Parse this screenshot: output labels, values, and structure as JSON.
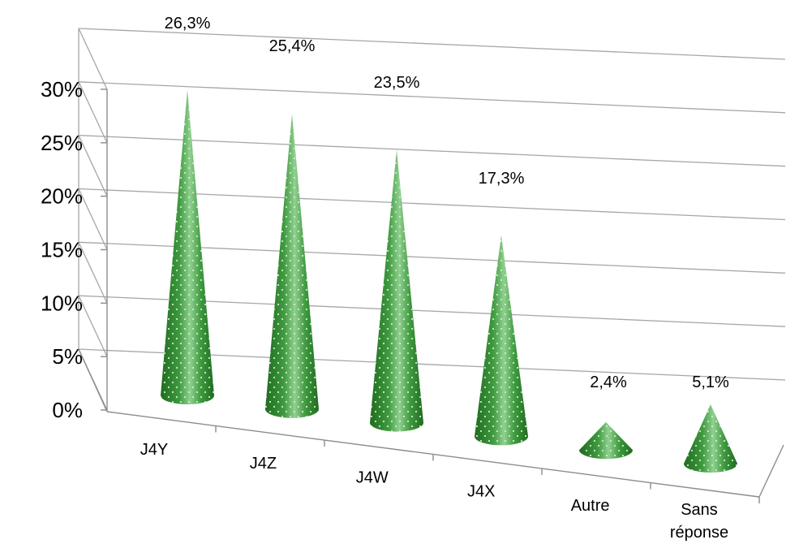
{
  "chart_data": {
    "type": "bar",
    "bar_shape": "cone",
    "three_d": true,
    "categories": [
      "J4Y",
      "J4Z",
      "J4W",
      "J4X",
      "Autre",
      "Sans réponse"
    ],
    "category_lines": [
      [
        "J4Y"
      ],
      [
        "J4Z"
      ],
      [
        "J4W"
      ],
      [
        "J4X"
      ],
      [
        "Autre"
      ],
      [
        "Sans",
        "réponse"
      ]
    ],
    "values": [
      26.3,
      25.4,
      23.5,
      17.3,
      2.4,
      5.1
    ],
    "data_labels": [
      "26,3%",
      "25,4%",
      "23,5%",
      "17,3%",
      "2,4%",
      "5,1%"
    ],
    "y_ticks": [
      "0%",
      "5%",
      "10%",
      "15%",
      "20%",
      "25%",
      "30%"
    ],
    "ylim": [
      0,
      30
    ],
    "y_unit": "%",
    "grid": true,
    "legend": "none",
    "colors": {
      "bar_dark": "#1f6b1f",
      "bar_mid": "#3f9a3f",
      "bar_light": "#8fd08f",
      "dots": "#cfe9cf",
      "grid": "#a6a6a6",
      "axis": "#8c8c8c"
    }
  }
}
